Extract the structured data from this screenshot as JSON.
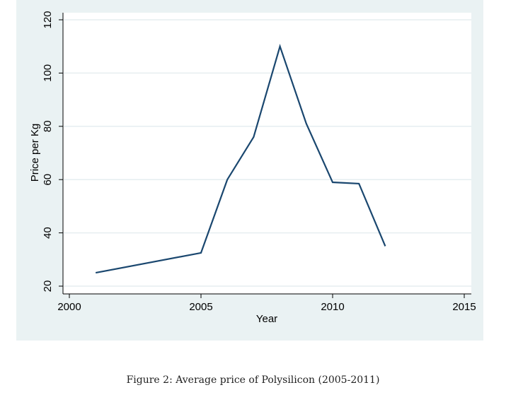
{
  "caption": "Figure 2: Average price of Polysilicon (2005-2011)",
  "chart_data": {
    "type": "line",
    "xlabel": "Year",
    "ylabel": "Price per Kg",
    "xlim": [
      2000,
      2015
    ],
    "ylim": [
      20,
      120
    ],
    "xticks": [
      2000,
      2005,
      2010,
      2015
    ],
    "yticks": [
      20,
      40,
      60,
      80,
      100,
      120
    ],
    "grid": true,
    "series": [
      {
        "color": "#1a476f",
        "x": [
          2001,
          2005,
          2006,
          2007,
          2008,
          2009,
          2010,
          2011,
          2012
        ],
        "y": [
          25,
          32.5,
          60,
          76,
          110,
          81,
          59,
          58.5,
          35
        ]
      }
    ],
    "colors": {
      "background": "#eaf2f3",
      "plot_area": "#ffffff",
      "gridline": "#e6eef0"
    }
  }
}
